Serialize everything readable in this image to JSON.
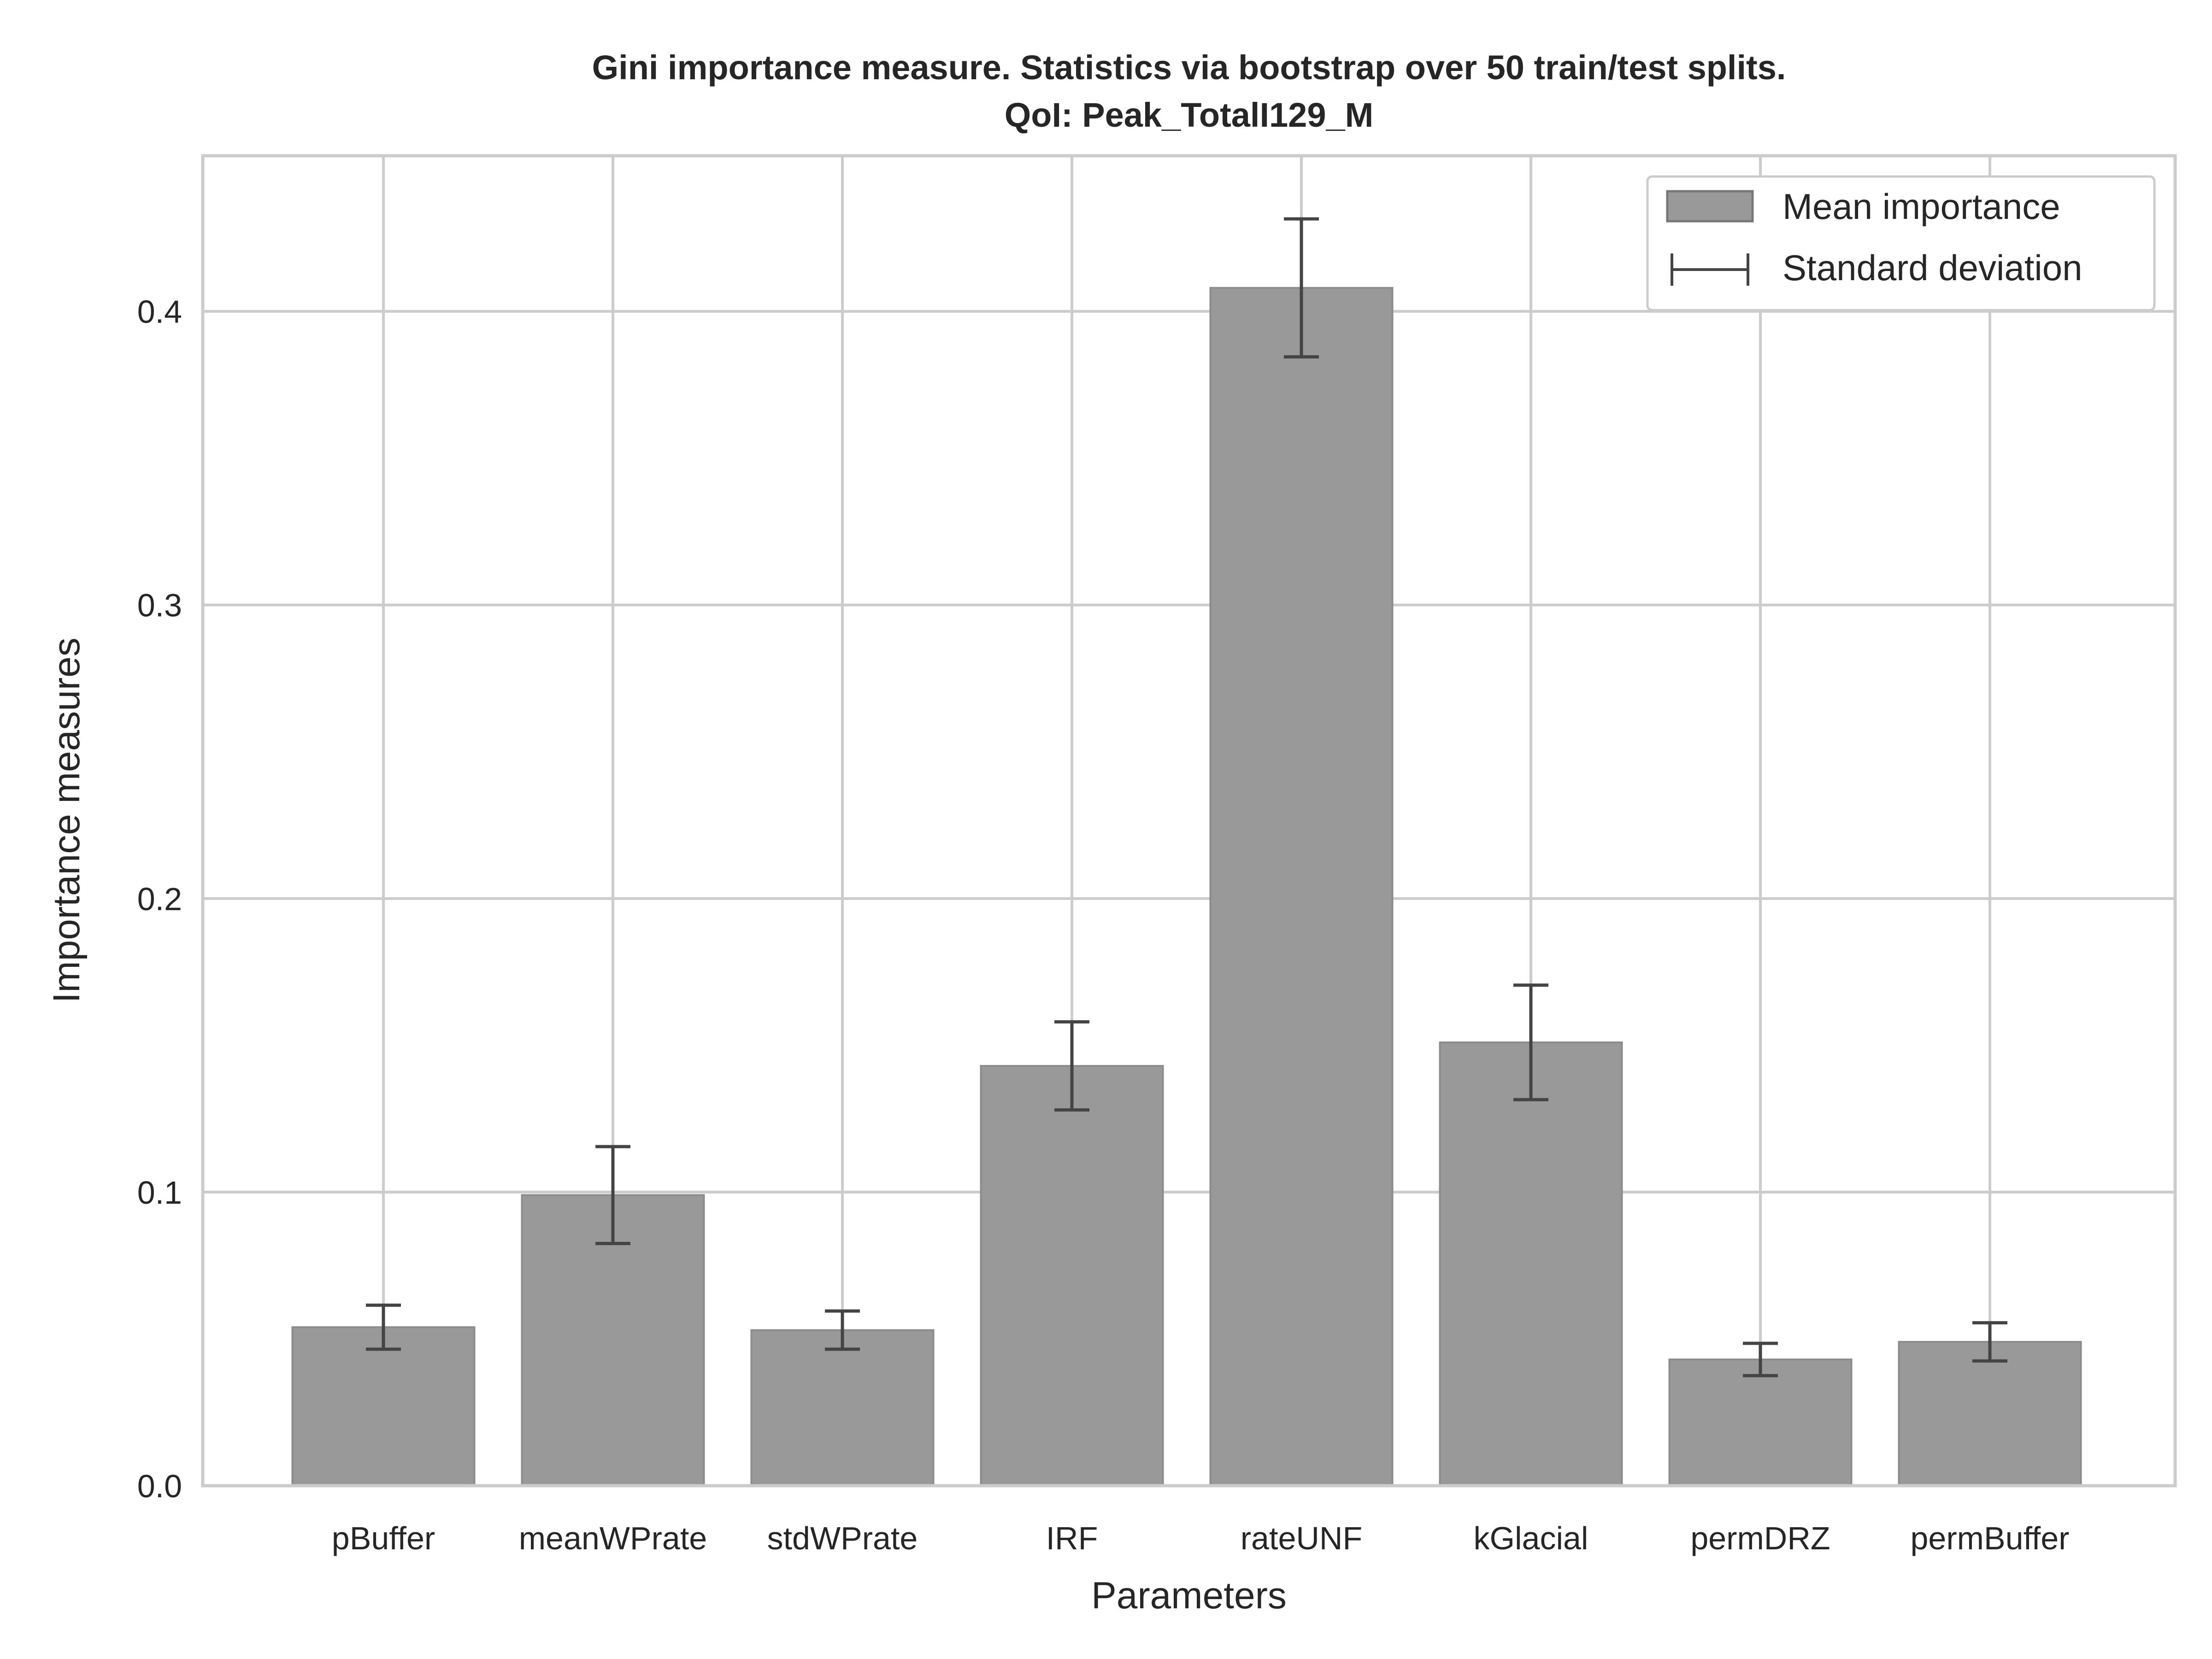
{
  "chart_data": {
    "type": "bar",
    "title": "Gini importance measure. Statistics via bootstrap over 50 train/test splits.",
    "subtitle": "QoI: Peak_TotalI129_M",
    "xlabel": "Parameters",
    "ylabel": "Importance measures",
    "categories": [
      "pBuffer",
      "meanWPrate",
      "stdWPrate",
      "IRF",
      "rateUNF",
      "kGlacial",
      "permDRZ",
      "permBuffer"
    ],
    "series": [
      {
        "name": "Mean importance",
        "values": [
          0.054,
          0.099,
          0.053,
          0.143,
          0.408,
          0.151,
          0.043,
          0.049
        ],
        "std": [
          0.0075,
          0.0165,
          0.0065,
          0.015,
          0.0235,
          0.0195,
          0.0055,
          0.0065
        ]
      }
    ],
    "error_label": "Standard deviation",
    "ylim": [
      0,
      0.453
    ],
    "yticks": [
      0.0,
      0.1,
      0.2,
      0.3,
      0.4
    ],
    "ytick_labels": [
      "0.0",
      "0.1",
      "0.2",
      "0.3",
      "0.4"
    ],
    "grid": true,
    "legend_position": "top-right",
    "colors": {
      "bar": "#999999",
      "bar_edge": "#8c8c8c",
      "error": "#444444",
      "grid": "#cccccc",
      "text": "#262626"
    }
  }
}
